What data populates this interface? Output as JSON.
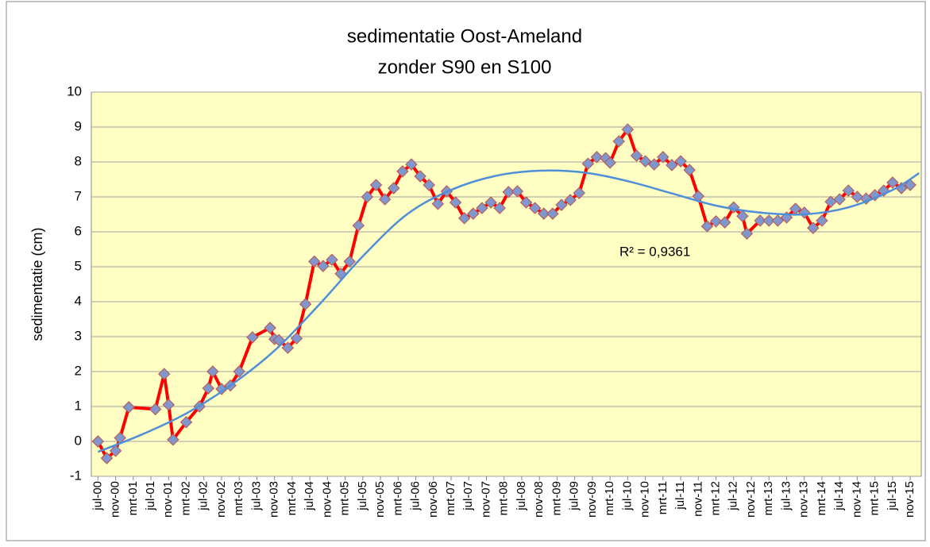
{
  "chart_data": {
    "type": "line",
    "title": [
      "sedimentatie Oost-Ameland",
      "zonder S90 en S100"
    ],
    "y_label": "sedimentatie (cm)",
    "annotation": "R² = 0,9361",
    "x": [
      0,
      2,
      4,
      5,
      7,
      13,
      15,
      16,
      17,
      20,
      23,
      25,
      26,
      28,
      30,
      32,
      35,
      39,
      40,
      41,
      43,
      45,
      47,
      49,
      51,
      53,
      55,
      57,
      59,
      61,
      63,
      65,
      67,
      69,
      71,
      73,
      75,
      77,
      79,
      81,
      83,
      85,
      87,
      89,
      91,
      93,
      95,
      97,
      99,
      101,
      103,
      105,
      107,
      109,
      111,
      113,
      115,
      116,
      118,
      120,
      122,
      124,
      126,
      128,
      130,
      132,
      134,
      136,
      138,
      140,
      142,
      144,
      146,
      147,
      150,
      152,
      154,
      156,
      158,
      160,
      162,
      164,
      166,
      168,
      170,
      172,
      174,
      176,
      178,
      180,
      182,
      184
    ],
    "series": [
      {
        "color": "#ff0000",
        "marker_color": "#7f97cc",
        "values": [
          0,
          -0.48,
          -0.27,
          0.1,
          0.98,
          0.92,
          1.93,
          1.05,
          0.05,
          0.55,
          1.0,
          1.52,
          2.0,
          1.5,
          1.6,
          2.0,
          2.98,
          3.25,
          2.93,
          2.9,
          2.68,
          2.95,
          3.93,
          5.15,
          5.02,
          5.2,
          4.8,
          5.15,
          6.18,
          7.0,
          7.34,
          6.93,
          7.25,
          7.73,
          7.93,
          7.59,
          7.34,
          6.8,
          7.16,
          6.84,
          6.39,
          6.52,
          6.68,
          6.84,
          6.68,
          7.14,
          7.16,
          6.84,
          6.68,
          6.52,
          6.52,
          6.77,
          6.91,
          7.11,
          7.95,
          8.14,
          8.11,
          7.98,
          8.59,
          8.93,
          8.18,
          8.02,
          7.93,
          8.14,
          7.91,
          8.02,
          7.77,
          7.02,
          6.16,
          6.3,
          6.27,
          6.7,
          6.45,
          5.95,
          6.32,
          6.32,
          6.32,
          6.41,
          6.66,
          6.55,
          6.11,
          6.32,
          6.86,
          6.93,
          7.18,
          7.0,
          6.95,
          7.05,
          7.18,
          7.41,
          7.25,
          7.34
        ]
      }
    ],
    "trendline": {
      "color": "#4f8fd8",
      "x": [
        0,
        10,
        20,
        30,
        40,
        50,
        60,
        70,
        80,
        90,
        100,
        110,
        120,
        130,
        140,
        150,
        160,
        170,
        180,
        186
      ],
      "values": [
        -0.3,
        0.2,
        0.8,
        1.6,
        2.6,
        3.9,
        5.3,
        6.5,
        7.2,
        7.6,
        7.75,
        7.7,
        7.45,
        7.1,
        6.75,
        6.55,
        6.5,
        6.7,
        7.2,
        7.68
      ]
    },
    "xlim": [
      -1.5,
      186.5
    ],
    "xticks": [
      {
        "value": 0,
        "label": "jul-00"
      },
      {
        "value": 4,
        "label": "nov-00"
      },
      {
        "value": 8,
        "label": "mrt-01"
      },
      {
        "value": 12,
        "label": "jul-01"
      },
      {
        "value": 16,
        "label": "nov-01"
      },
      {
        "value": 20,
        "label": "mrt-02"
      },
      {
        "value": 24,
        "label": "jul-02"
      },
      {
        "value": 28,
        "label": "nov-02"
      },
      {
        "value": 32,
        "label": "mrt-03"
      },
      {
        "value": 36,
        "label": "jul-03"
      },
      {
        "value": 40,
        "label": "nov-03"
      },
      {
        "value": 44,
        "label": "mrt-04"
      },
      {
        "value": 48,
        "label": "jul-04"
      },
      {
        "value": 52,
        "label": "nov-04"
      },
      {
        "value": 56,
        "label": "mrt-05"
      },
      {
        "value": 60,
        "label": "jul-05"
      },
      {
        "value": 64,
        "label": "nov-05"
      },
      {
        "value": 68,
        "label": "mrt-06"
      },
      {
        "value": 72,
        "label": "jul-06"
      },
      {
        "value": 76,
        "label": "nov-06"
      },
      {
        "value": 80,
        "label": "mrt-07"
      },
      {
        "value": 84,
        "label": "jul-07"
      },
      {
        "value": 88,
        "label": "nov-07"
      },
      {
        "value": 92,
        "label": "mrt-08"
      },
      {
        "value": 96,
        "label": "jul-08"
      },
      {
        "value": 100,
        "label": "nov-08"
      },
      {
        "value": 104,
        "label": "mrt-09"
      },
      {
        "value": 108,
        "label": "jul-09"
      },
      {
        "value": 112,
        "label": "nov-09"
      },
      {
        "value": 116,
        "label": "mrt-10"
      },
      {
        "value": 120,
        "label": "jul-10"
      },
      {
        "value": 124,
        "label": "nov-10"
      },
      {
        "value": 128,
        "label": "mrt-11"
      },
      {
        "value": 132,
        "label": "jul-11"
      },
      {
        "value": 136,
        "label": "nov-11"
      },
      {
        "value": 140,
        "label": "mrt-12"
      },
      {
        "value": 144,
        "label": "jul-12"
      },
      {
        "value": 148,
        "label": "nov-12"
      },
      {
        "value": 152,
        "label": "mrt-13"
      },
      {
        "value": 156,
        "label": "jul-13"
      },
      {
        "value": 160,
        "label": "nov-13"
      },
      {
        "value": 164,
        "label": "mrt-14"
      },
      {
        "value": 168,
        "label": "jul-14"
      },
      {
        "value": 172,
        "label": "nov-14"
      },
      {
        "value": 176,
        "label": "mrt-15"
      },
      {
        "value": 180,
        "label": "jul-15"
      },
      {
        "value": 184,
        "label": "nov-15"
      }
    ],
    "ylim": [
      -1,
      10
    ],
    "yticks": [
      -1,
      0,
      1,
      2,
      3,
      4,
      5,
      6,
      7,
      8,
      9,
      10
    ],
    "grid": true,
    "plot_background": "#ffffc4"
  }
}
